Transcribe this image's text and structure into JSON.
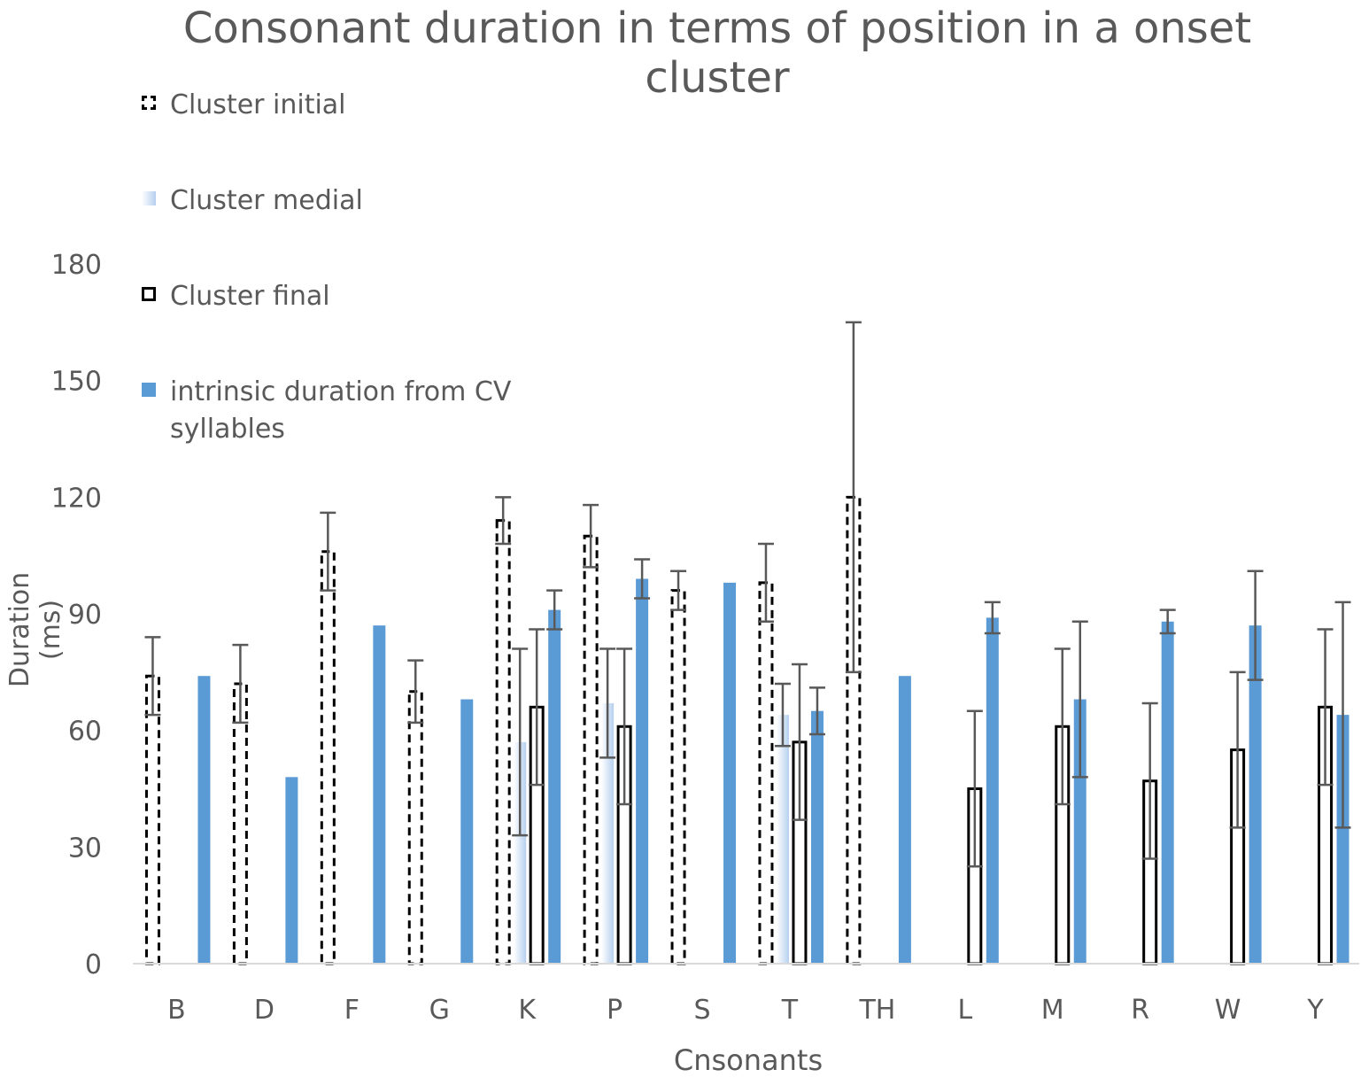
{
  "chart_data": {
    "type": "bar",
    "title": "Consonant duration in terms of position in a onset cluster",
    "xlabel": "Cnsonants",
    "ylabel": "Duration (ms)",
    "ylim": [
      0,
      180
    ],
    "yticks": [
      0,
      30,
      60,
      90,
      120,
      150,
      180
    ],
    "categories": [
      "B",
      "D",
      "F",
      "G",
      "K",
      "P",
      "S",
      "T",
      "TH",
      "L",
      "M",
      "R",
      "W",
      "Y"
    ],
    "series": [
      {
        "name": "Cluster initial",
        "values": [
          74,
          72,
          106,
          70,
          114,
          110,
          96,
          98,
          120,
          null,
          null,
          null,
          null,
          null
        ],
        "errors": [
          10,
          10,
          10,
          8,
          6,
          8,
          5,
          10,
          45,
          null,
          null,
          null,
          null,
          null
        ]
      },
      {
        "name": "Cluster medial",
        "values": [
          null,
          null,
          null,
          null,
          57,
          67,
          null,
          64,
          null,
          null,
          null,
          null,
          null,
          null
        ],
        "errors": [
          null,
          null,
          null,
          null,
          24,
          14,
          null,
          8,
          null,
          null,
          null,
          null,
          null,
          null
        ]
      },
      {
        "name": "Cluster final",
        "values": [
          null,
          null,
          null,
          null,
          66,
          61,
          null,
          57,
          null,
          45,
          61,
          47,
          55,
          66
        ],
        "errors": [
          null,
          null,
          null,
          null,
          20,
          20,
          null,
          20,
          null,
          20,
          20,
          20,
          20,
          20
        ]
      },
      {
        "name": "intrinsic duration from CV syllables",
        "values": [
          74,
          48,
          87,
          68,
          91,
          99,
          98,
          65,
          74,
          89,
          68,
          88,
          87,
          64
        ],
        "errors": [
          null,
          null,
          null,
          null,
          5,
          5,
          null,
          6,
          null,
          4,
          20,
          3,
          14,
          29
        ]
      }
    ],
    "legend_position": "top-left",
    "grid": false
  },
  "colors": {
    "intrinsic": "#5b9bd5",
    "medial": "#b6d0ef",
    "axis": "#d9d9d9",
    "text": "#595959",
    "error": "#595959"
  }
}
